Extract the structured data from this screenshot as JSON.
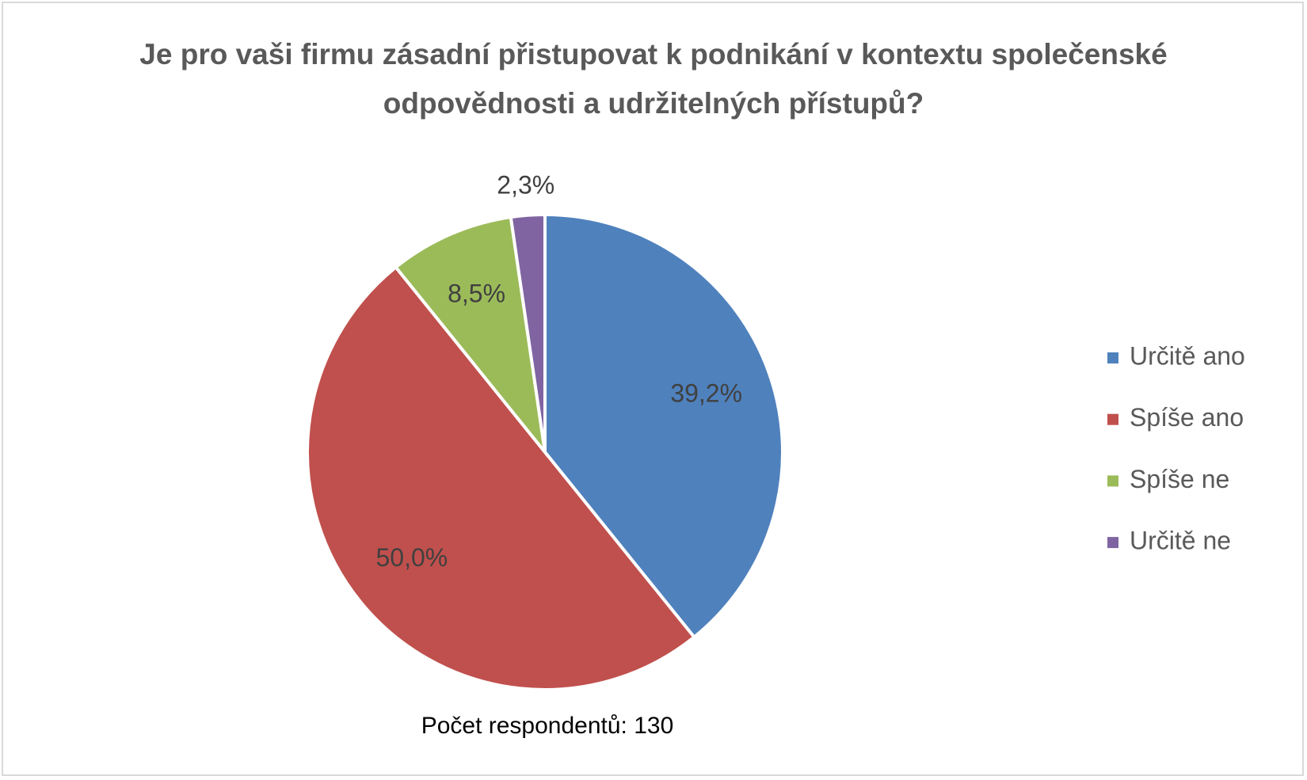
{
  "chart_data": {
    "type": "pie",
    "title": "Je pro vaši firmu zásadní přistupovat k podnikání v kontextu společenské odpovědnosti a udržitelných přístupů?",
    "categories": [
      "Určitě ano",
      "Spíše ano",
      "Spíše ne",
      "Určitě ne"
    ],
    "values": [
      39.2,
      50.0,
      8.5,
      2.3
    ],
    "value_labels": [
      "39,2%",
      "50,0%",
      "8,5%",
      "2,3%"
    ],
    "colors": [
      "#4f81bd",
      "#c0504d",
      "#9bbb59",
      "#8064a2"
    ],
    "legend": "right",
    "annotation": "Počet respondentů: 130"
  }
}
